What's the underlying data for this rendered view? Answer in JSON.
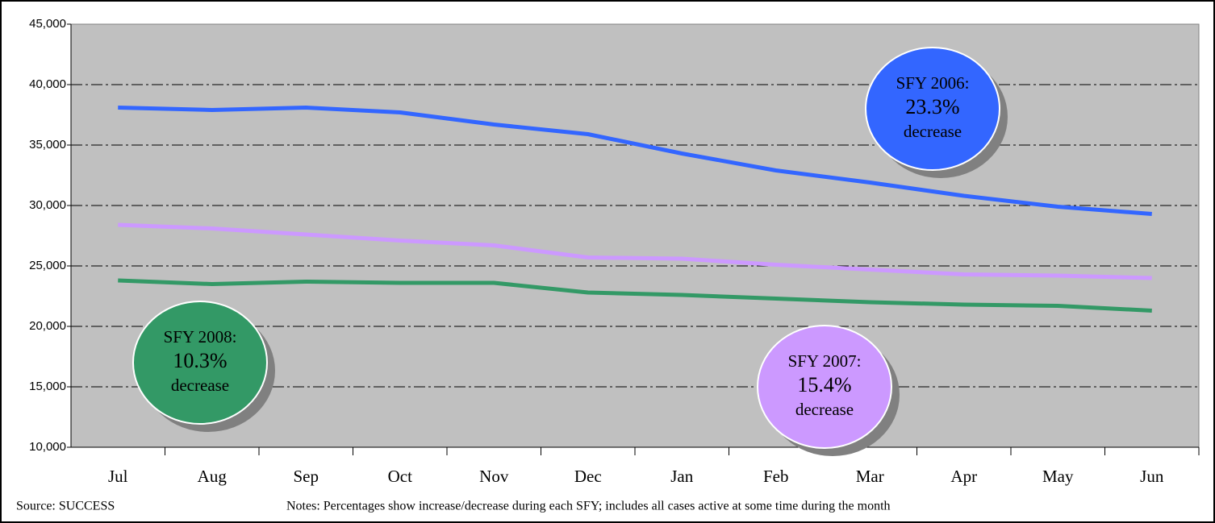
{
  "chart_data": {
    "type": "line",
    "categories": [
      "Jul",
      "Aug",
      "Sep",
      "Oct",
      "Nov",
      "Dec",
      "Jan",
      "Feb",
      "Mar",
      "Apr",
      "May",
      "Jun"
    ],
    "series": [
      {
        "color": "#3366ff",
        "values": [
          38100,
          37900,
          38100,
          37700,
          36700,
          35900,
          34300,
          32900,
          31900,
          30800,
          29900,
          29300
        ]
      },
      {
        "color": "#cc99ff",
        "values": [
          28400,
          28100,
          27600,
          27100,
          26700,
          25700,
          25600,
          25100,
          24700,
          24300,
          24200,
          24000
        ]
      },
      {
        "color": "#339966",
        "values": [
          23800,
          23500,
          23700,
          23600,
          23600,
          22800,
          22600,
          22300,
          22000,
          21800,
          21700,
          21300
        ]
      }
    ],
    "ylim": [
      10000,
      45000
    ],
    "yticks": [
      {
        "value": 10000,
        "label": "10,000"
      },
      {
        "value": 15000,
        "label": "15,000"
      },
      {
        "value": 20000,
        "label": "20,000"
      },
      {
        "value": 25000,
        "label": "25,000"
      },
      {
        "value": 30000,
        "label": "30,000"
      },
      {
        "value": 35000,
        "label": "35,000"
      },
      {
        "value": 40000,
        "label": "40,000"
      },
      {
        "value": 45000,
        "label": "45,000"
      }
    ],
    "grid": true,
    "annotations": [
      {
        "lines": [
          "SFY 2006:",
          "23.3%",
          "decrease"
        ],
        "color": "#3366ff"
      },
      {
        "lines": [
          "SFY 2007:",
          "15.4%",
          "decrease"
        ],
        "color": "#cc99ff"
      },
      {
        "lines": [
          "SFY 2008:",
          "10.3%",
          "decrease"
        ],
        "color": "#339966"
      }
    ],
    "source": "Source: SUCCESS",
    "notes": "Notes: Percentages show increase/decrease during each SFY;  includes all cases active at some time during  the month"
  }
}
